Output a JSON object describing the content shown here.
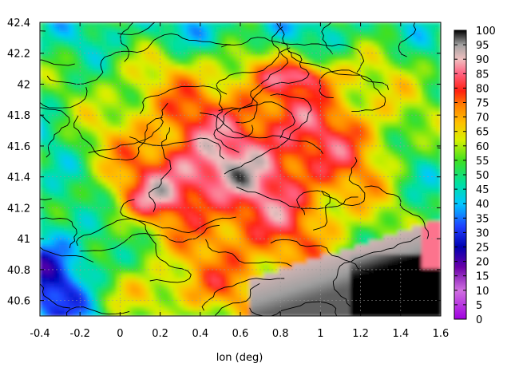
{
  "chart_data": {
    "type": "heatmap",
    "title": "",
    "xlabel": "lon (deg)",
    "ylabel": "",
    "xlim": [
      -0.4,
      1.6
    ],
    "ylim": [
      40.5,
      42.4
    ],
    "x_ticks": [
      "-0.4",
      "-0.2",
      "0",
      "0.2",
      "0.4",
      "0.6",
      "0.8",
      "1",
      "1.2",
      "1.4",
      "1.6"
    ],
    "y_ticks": [
      "40.6",
      "40.8",
      "41",
      "41.2",
      "41.4",
      "41.6",
      "41.8",
      "42",
      "42.2",
      "42.4"
    ],
    "colorbar": {
      "range": [
        0,
        100
      ],
      "ticks": [
        "0",
        "5",
        "10",
        "15",
        "20",
        "25",
        "30",
        "35",
        "40",
        "45",
        "50",
        "55",
        "60",
        "65",
        "70",
        "75",
        "80",
        "85",
        "90",
        "95",
        "100"
      ]
    },
    "grid": true,
    "contours": true
  }
}
